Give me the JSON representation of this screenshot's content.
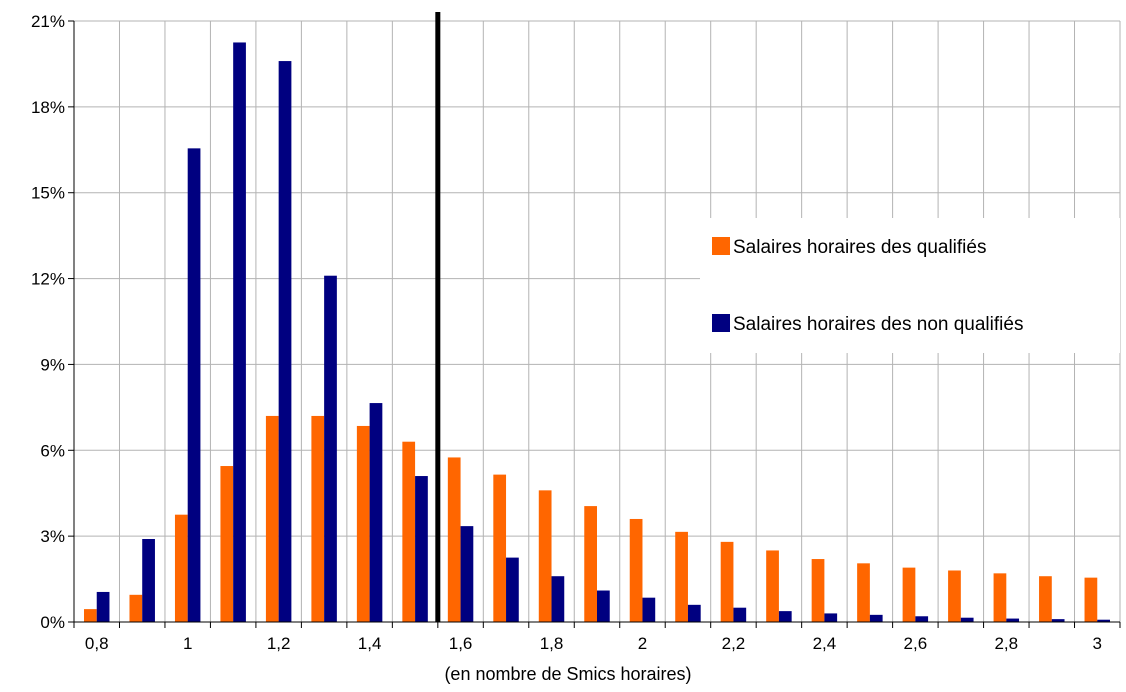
{
  "chart_data": {
    "type": "bar",
    "title": "",
    "xlabel": "(en nombre de Smics horaires)",
    "ylabel": "",
    "ylim": [
      0,
      21
    ],
    "yticks": [
      "0%",
      "3%",
      "6%",
      "9%",
      "12%",
      "15%",
      "18%",
      "21%"
    ],
    "ytick_values": [
      0,
      3,
      6,
      9,
      12,
      15,
      18,
      21
    ],
    "x_tick_labels": [
      "0,8",
      "1",
      "1,2",
      "1,4",
      "1,6",
      "1,8",
      "2",
      "2,2",
      "2,4",
      "2,6",
      "2,8",
      "3"
    ],
    "categories": [
      "0,8",
      "0,9",
      "1",
      "1,1",
      "1,2",
      "1,3",
      "1,4",
      "1,5",
      "1,6",
      "1,7",
      "1,8",
      "1,9",
      "2",
      "2,1",
      "2,2",
      "2,3",
      "2,4",
      "2,5",
      "2,6",
      "2,7",
      "2,8",
      "2,9",
      "3"
    ],
    "grid": true,
    "legend_position": "right",
    "reference_line": {
      "x": 1.55,
      "color": "#000000"
    },
    "series": [
      {
        "name": "Salaires horaires des qualifiés",
        "color": "#FF6600",
        "values": [
          0.45,
          0.95,
          3.75,
          5.45,
          7.2,
          7.2,
          6.85,
          6.3,
          5.75,
          5.15,
          4.6,
          4.05,
          3.6,
          3.15,
          2.8,
          2.5,
          2.2,
          2.05,
          1.9,
          1.8,
          1.7,
          1.6,
          1.55
        ]
      },
      {
        "name": "Salaires horaires des non qualifiés",
        "color": "#000080",
        "values": [
          1.05,
          2.9,
          16.55,
          20.25,
          19.6,
          12.1,
          7.65,
          5.1,
          3.35,
          2.25,
          1.6,
          1.1,
          0.85,
          0.6,
          0.5,
          0.38,
          0.3,
          0.25,
          0.2,
          0.15,
          0.12,
          0.1,
          0.08
        ]
      }
    ]
  }
}
